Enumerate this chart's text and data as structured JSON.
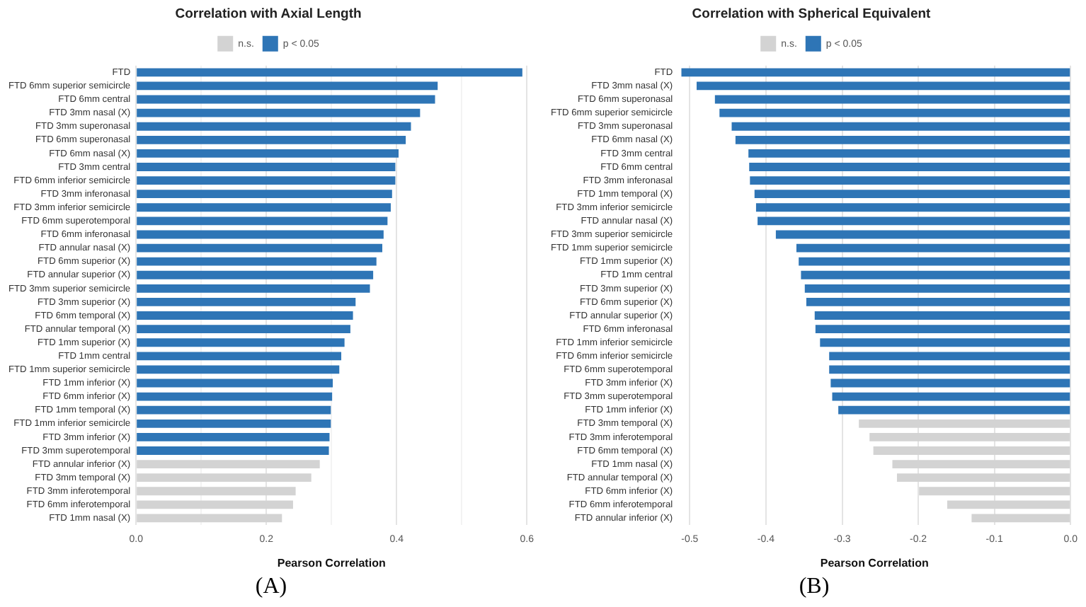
{
  "chart_data": [
    {
      "type": "bar",
      "orientation": "horizontal",
      "title": "Correlation with Axial Length",
      "xlabel": "Pearson Correlation",
      "categories": [
        "FTD",
        "FTD 6mm superior semicircle",
        "FTD 6mm central",
        "FTD 3mm nasal (X)",
        "FTD 3mm superonasal",
        "FTD 6mm superonasal",
        "FTD 6mm nasal (X)",
        "FTD 3mm central",
        "FTD 6mm inferior semicircle",
        "FTD 3mm inferonasal",
        "FTD 3mm inferior semicircle",
        "FTD 6mm superotemporal",
        "FTD 6mm inferonasal",
        "FTD annular nasal (X)",
        "FTD 6mm superior (X)",
        "FTD annular superior (X)",
        "FTD 3mm superior semicircle",
        "FTD 3mm superior (X)",
        "FTD 6mm temporal (X)",
        "FTD annular temporal (X)",
        "FTD 1mm superior (X)",
        "FTD 1mm central",
        "FTD 1mm superior semicircle",
        "FTD 1mm inferior (X)",
        "FTD 6mm inferior (X)",
        "FTD 1mm temporal (X)",
        "FTD 1mm inferior semicircle",
        "FTD 3mm inferior (X)",
        "FTD 3mm superotemporal",
        "FTD annular inferior (X)",
        "FTD 3mm temporal (X)",
        "FTD 3mm inferotemporal",
        "FTD 6mm inferotemporal",
        "FTD 1mm nasal (X)"
      ],
      "series": [
        {
          "name": "n.s.",
          "color": "#d3d3d3",
          "values": [
            null,
            null,
            null,
            null,
            null,
            null,
            null,
            null,
            null,
            null,
            null,
            null,
            null,
            null,
            null,
            null,
            null,
            null,
            null,
            null,
            null,
            null,
            null,
            null,
            null,
            null,
            null,
            null,
            null,
            0.282,
            0.269,
            0.245,
            0.241,
            0.224
          ]
        },
        {
          "name": "p < 0.05",
          "color": "#2e75b6",
          "values": [
            0.593,
            0.463,
            0.459,
            0.436,
            0.422,
            0.414,
            0.403,
            0.398,
            0.398,
            0.393,
            0.391,
            0.386,
            0.38,
            0.378,
            0.369,
            0.364,
            0.359,
            0.337,
            0.333,
            0.329,
            0.32,
            0.315,
            0.312,
            0.302,
            0.301,
            0.299,
            0.299,
            0.297,
            0.296,
            null,
            null,
            null,
            null,
            null
          ]
        }
      ],
      "xlim": [
        0,
        0.6
      ],
      "xticks": [
        {
          "value": 0,
          "label": "0.0"
        },
        {
          "value": 0.1,
          "label": null
        },
        0.2,
        {
          "value": 0.3,
          "label": null
        },
        0.4,
        {
          "value": 0.5,
          "label": null
        },
        0.6
      ],
      "grid": "x",
      "legend": "top",
      "annotations": [
        "(A)"
      ]
    },
    {
      "type": "bar",
      "orientation": "horizontal",
      "title": "Correlation with Spherical Equivalent",
      "xlabel": "Pearson Correlation",
      "categories": [
        "FTD",
        "FTD 3mm nasal (X)",
        "FTD 6mm superonasal",
        "FTD 6mm superior semicircle",
        "FTD 3mm superonasal",
        "FTD 6mm nasal (X)",
        "FTD 3mm central",
        "FTD 6mm central",
        "FTD 3mm inferonasal",
        "FTD 1mm temporal (X)",
        "FTD 3mm inferior semicircle",
        "FTD annular nasal (X)",
        "FTD 3mm superior semicircle",
        "FTD 1mm superior semicircle",
        "FTD 1mm superior (X)",
        "FTD 1mm central",
        "FTD 3mm superior (X)",
        "FTD 6mm superior (X)",
        "FTD annular superior (X)",
        "FTD 6mm inferonasal",
        "FTD 1mm inferior semicircle",
        "FTD 6mm inferior semicircle",
        "FTD 6mm superotemporal",
        "FTD 3mm inferior (X)",
        "FTD 3mm superotemporal",
        "FTD 1mm inferior (X)",
        "FTD 3mm temporal (X)",
        "FTD 3mm inferotemporal",
        "FTD 6mm temporal (X)",
        "FTD 1mm nasal (X)",
        "FTD annular temporal (X)",
        "FTD 6mm inferior (X)",
        "FTD 6mm inferotemporal",
        "FTD annular inferior (X)"
      ],
      "series": [
        {
          "name": "n.s.",
          "color": "#d3d3d3",
          "values": [
            null,
            null,
            null,
            null,
            null,
            null,
            null,
            null,
            null,
            null,
            null,
            null,
            null,
            null,
            null,
            null,
            null,
            null,
            null,
            null,
            null,
            null,
            null,
            null,
            null,
            null,
            -0.278,
            -0.264,
            -0.259,
            -0.234,
            -0.228,
            -0.199,
            -0.162,
            -0.13
          ]
        },
        {
          "name": "p < 0.05",
          "color": "#2e75b6",
          "values": [
            -0.511,
            -0.491,
            -0.467,
            -0.461,
            -0.445,
            -0.44,
            -0.423,
            -0.422,
            -0.421,
            -0.415,
            -0.413,
            -0.411,
            -0.387,
            -0.36,
            -0.357,
            -0.354,
            -0.349,
            -0.347,
            -0.336,
            -0.335,
            -0.329,
            -0.317,
            -0.317,
            -0.315,
            -0.313,
            -0.305,
            null,
            null,
            null,
            null,
            null,
            null,
            null,
            null
          ]
        }
      ],
      "xlim": [
        -0.515,
        0
      ],
      "xticks": [
        -0.5,
        -0.4,
        -0.3,
        -0.2,
        -0.1,
        {
          "value": 0,
          "label": "0.0"
        }
      ],
      "grid": "x",
      "legend": "top",
      "annotations": [
        "(B)"
      ]
    }
  ]
}
